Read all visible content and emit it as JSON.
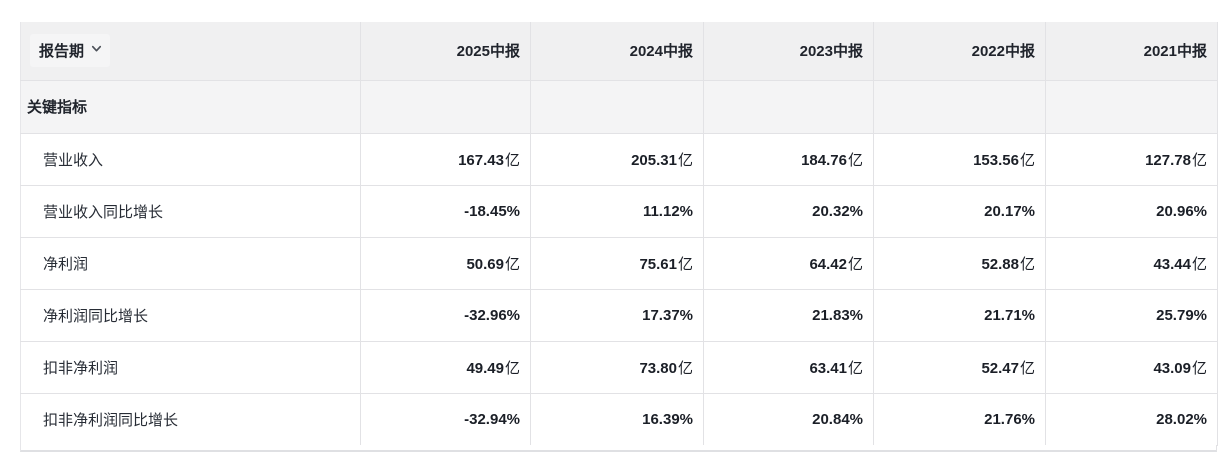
{
  "table": {
    "header": {
      "period_label": "报告期",
      "chevron_icon": "chevron-down",
      "columns": [
        "2025中报",
        "2024中报",
        "2023中报",
        "2022中报",
        "2021中报"
      ]
    },
    "section_label": "关键指标",
    "rows": [
      {
        "label": "营业收入",
        "values": [
          "167.43亿",
          "205.31亿",
          "184.76亿",
          "153.56亿",
          "127.78亿"
        ]
      },
      {
        "label": "营业收入同比增长",
        "values": [
          "-18.45%",
          "11.12%",
          "20.32%",
          "20.17%",
          "20.96%"
        ]
      },
      {
        "label": "净利润",
        "values": [
          "50.69亿",
          "75.61亿",
          "64.42亿",
          "52.88亿",
          "43.44亿"
        ]
      },
      {
        "label": "净利润同比增长",
        "values": [
          "-32.96%",
          "17.37%",
          "21.83%",
          "21.71%",
          "25.79%"
        ]
      },
      {
        "label": "扣非净利润",
        "values": [
          "49.49亿",
          "73.80亿",
          "63.41亿",
          "52.47亿",
          "43.09亿"
        ]
      },
      {
        "label": "扣非净利润同比增长",
        "values": [
          "-32.94%",
          "16.39%",
          "20.84%",
          "21.76%",
          "28.02%"
        ]
      }
    ],
    "unit_suffix": "亿"
  },
  "colors": {
    "header_bg": "#f0f0f1",
    "section_bg": "#f4f4f5",
    "row_bg": "#ffffff",
    "border": "#e2e2e5",
    "text": "#1e222a",
    "chevron": "#4b5058"
  }
}
